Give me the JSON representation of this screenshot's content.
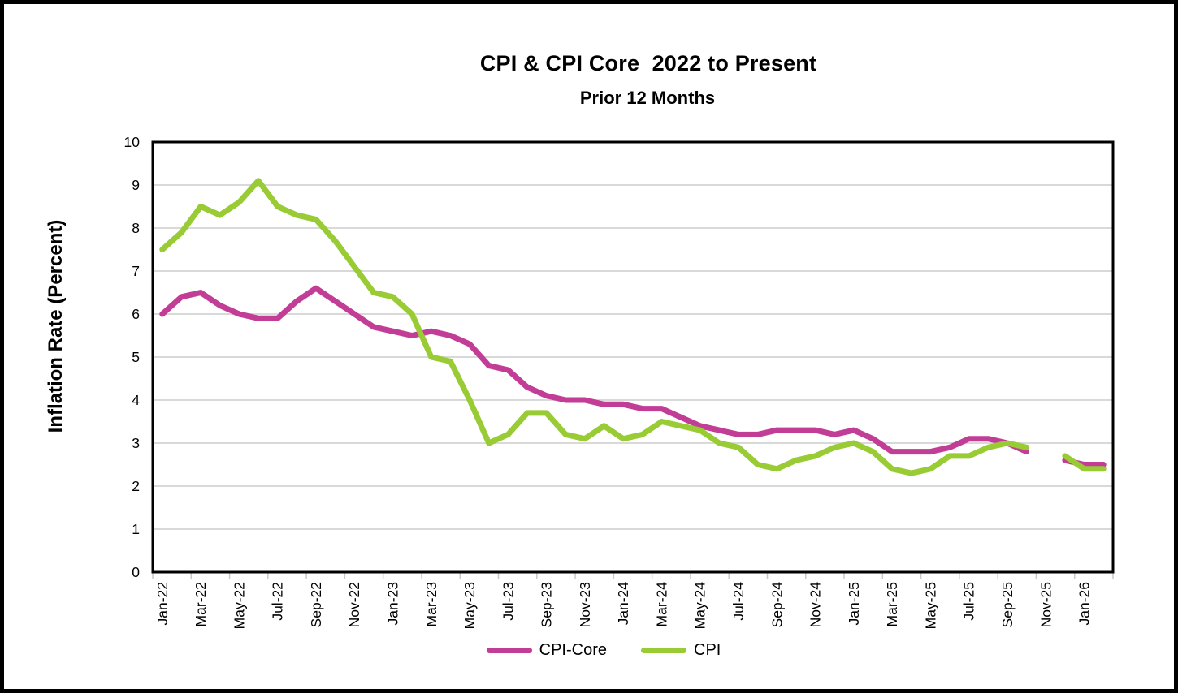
{
  "figure": {
    "background": "#FFFFFF",
    "border_color": "#000000"
  },
  "chart_data": {
    "type": "line",
    "title": "CPI & CPI Core  2022 to Present",
    "subtitle": "Prior 12 Months",
    "ylabel": "Inflation Rate (Percent)",
    "xlabel": "",
    "ylim": [
      0,
      10
    ],
    "ytick_interval": 1,
    "ytick_labels": [
      "0",
      "1",
      "2",
      "3",
      "4",
      "5",
      "6",
      "7",
      "8",
      "9",
      "10"
    ],
    "grid": "horizontal",
    "gridline_color": "#D9D9D9",
    "axis_color": "#000000",
    "tick_color": "#C9C9C9",
    "x_label_rotation": -90,
    "x_labels_every": 2,
    "legend_position": "bottom-center",
    "categories": [
      "Jan-22",
      "Feb-22",
      "Mar-22",
      "Apr-22",
      "May-22",
      "Jun-22",
      "Jul-22",
      "Aug-22",
      "Sep-22",
      "Oct-22",
      "Nov-22",
      "Dec-22",
      "Jan-23",
      "Feb-23",
      "Mar-23",
      "Apr-23",
      "May-23",
      "Jun-23",
      "Jul-23",
      "Aug-23",
      "Sep-23",
      "Oct-23",
      "Nov-23",
      "Dec-23",
      "Jan-24",
      "Feb-24",
      "Mar-24",
      "Apr-24",
      "May-24",
      "Jun-24",
      "Jul-24",
      "Aug-24",
      "Sep-24",
      "Oct-24",
      "Nov-24",
      "Dec-24",
      "Jan-25",
      "Feb-25",
      "Mar-25",
      "Apr-25",
      "May-25",
      "Jun-25",
      "Jul-25",
      "Aug-25",
      "Sep-25",
      "Oct-25",
      "Nov-25",
      "Dec-25",
      "Jan-26",
      "Feb-26"
    ],
    "series": [
      {
        "name": "CPI-Core",
        "color": "#C23D96",
        "values": [
          6.0,
          6.4,
          6.5,
          6.2,
          6.0,
          5.9,
          5.9,
          6.3,
          6.6,
          6.3,
          6.0,
          5.7,
          5.6,
          5.5,
          5.6,
          5.5,
          5.3,
          4.8,
          4.7,
          4.3,
          4.1,
          4.0,
          4.0,
          3.9,
          3.9,
          3.8,
          3.8,
          3.6,
          3.4,
          3.3,
          3.2,
          3.2,
          3.3,
          3.3,
          3.3,
          3.2,
          3.3,
          3.1,
          2.8,
          2.8,
          2.8,
          2.9,
          3.1,
          3.1,
          3.0,
          2.8,
          null,
          2.6,
          2.5,
          2.5
        ]
      },
      {
        "name": "CPI",
        "color": "#99CB34",
        "values": [
          7.5,
          7.9,
          8.5,
          8.3,
          8.6,
          9.1,
          8.5,
          8.3,
          8.2,
          7.7,
          7.1,
          6.5,
          6.4,
          6.0,
          5.0,
          4.9,
          4.0,
          3.0,
          3.2,
          3.7,
          3.7,
          3.2,
          3.1,
          3.4,
          3.1,
          3.2,
          3.5,
          3.4,
          3.3,
          3.0,
          2.9,
          2.5,
          2.4,
          2.6,
          2.7,
          2.9,
          3.0,
          2.8,
          2.4,
          2.3,
          2.4,
          2.7,
          2.7,
          2.9,
          3.0,
          2.9,
          null,
          2.7,
          2.4,
          2.4
        ]
      }
    ]
  }
}
